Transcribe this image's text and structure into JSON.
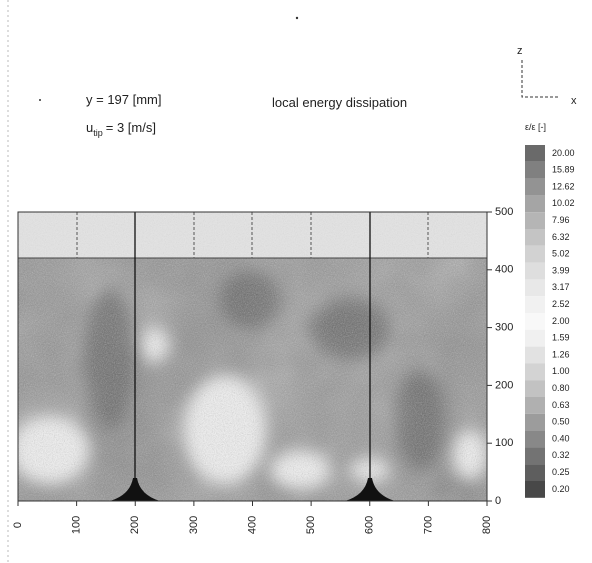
{
  "chart_data": {
    "type": "contour",
    "title": "local energy dissipation",
    "position_label": "y = 197 [mm]",
    "speed_label": {
      "symbol": "u",
      "subscript": "tip",
      "value": "= 3 [m/s]"
    },
    "axis_indicator": {
      "vertical": "z",
      "horizontal": "x"
    },
    "xlim": [
      0,
      800
    ],
    "xticks": [
      0,
      100,
      200,
      300,
      400,
      500,
      600,
      700,
      800
    ],
    "ylim": [
      0,
      500
    ],
    "yticks": [
      0,
      100,
      200,
      300,
      400,
      500
    ],
    "colorbar": {
      "label": "ε/ε [-]",
      "levels": [
        {
          "value": 20,
          "label": "20.00"
        },
        15.89,
        12.62,
        10.02,
        7.96,
        6.32,
        5.02,
        3.99,
        3.17,
        2.52,
        {
          "value": 2,
          "label": "2.00"
        },
        1.59,
        1.26,
        {
          "value": 1,
          "label": "1.00"
        },
        {
          "value": 0.8,
          "label": "0.80"
        },
        0.63,
        {
          "value": 0.5,
          "label": "0.50"
        },
        {
          "value": 0.4,
          "label": "0.40"
        },
        0.32,
        0.25,
        {
          "value": 0.2,
          "label": "0.20"
        }
      ],
      "colors": [
        "#6a6a6a",
        "#808080",
        "#939393",
        "#a5a5a5",
        "#b5b5b5",
        "#c4c4c4",
        "#d2d2d2",
        "#dedede",
        "#e8e8e8",
        "#f1f1f1",
        "#f8f8f8",
        "#f0f0f0",
        "#e2e2e2",
        "#d3d3d3",
        "#c2c2c2",
        "#b0b0b0",
        "#9c9c9c",
        "#888888",
        "#737373",
        "#5e5e5e",
        "#484848"
      ]
    }
  }
}
